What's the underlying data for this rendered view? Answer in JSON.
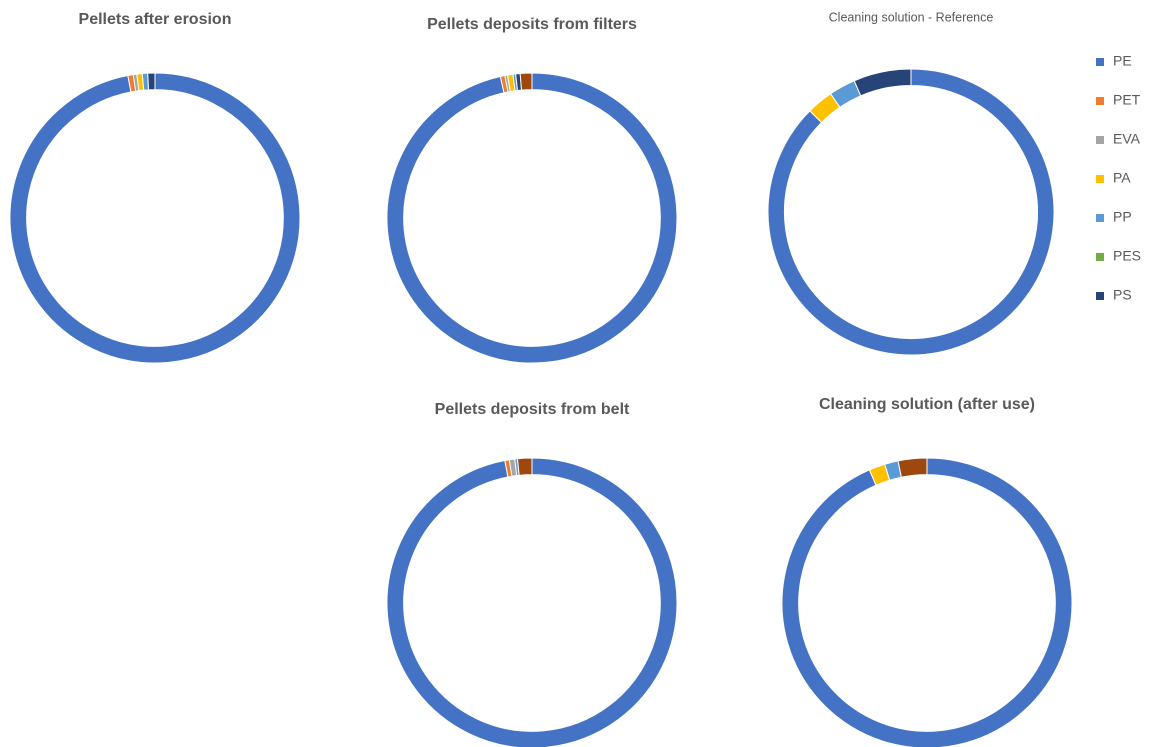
{
  "chart_data": [
    {
      "type": "donut",
      "title": "Pellets after erosion",
      "categories": [
        "PE",
        "PET",
        "EVA",
        "PA",
        "PP",
        "PES",
        "PS",
        null
      ],
      "values": [
        97,
        0.6,
        0.4,
        0.6,
        0.6,
        0,
        0.8,
        0
      ],
      "colors": [
        "#4472c4",
        "#ed7d31",
        "#a5a5a5",
        "#ffc000",
        "#5b9bd5",
        "#70ad47",
        "#264478",
        "#9e480e"
      ]
    },
    {
      "type": "donut",
      "title": "Pellets deposits from  filters",
      "categories": [
        "PE",
        "PET",
        "EVA",
        "PA",
        "PP",
        "PES",
        "PS",
        null
      ],
      "values": [
        96.5,
        0.5,
        0.3,
        0.6,
        0.3,
        0,
        0.5,
        1.3
      ],
      "colors": [
        "#4472c4",
        "#ed7d31",
        "#a5a5a5",
        "#ffc000",
        "#5b9bd5",
        "#70ad47",
        "#264478",
        "#9e480e"
      ]
    },
    {
      "type": "donut",
      "title": "Cleaning solution - Reference",
      "categories": [
        "PE",
        "PET",
        "EVA",
        "PA",
        "PP",
        "PES",
        "PS",
        null
      ],
      "values": [
        87.5,
        0,
        0,
        3,
        3,
        0,
        6.5,
        0
      ],
      "colors": [
        "#4472c4",
        "#ed7d31",
        "#a5a5a5",
        "#ffc000",
        "#5b9bd5",
        "#70ad47",
        "#264478",
        "#9e480e"
      ],
      "legend": "right"
    },
    {
      "type": "donut",
      "title": "Pellets deposits from belt",
      "categories": [
        "PE",
        "PET",
        "EVA",
        "PA",
        "PP",
        "PES",
        "PS",
        null
      ],
      "values": [
        97,
        0.5,
        0.6,
        0,
        0.3,
        0,
        0,
        1.6
      ],
      "colors": [
        "#4472c4",
        "#ed7d31",
        "#a5a5a5",
        "#ffc000",
        "#5b9bd5",
        "#70ad47",
        "#264478",
        "#9e480e"
      ]
    },
    {
      "type": "donut",
      "title": "Cleaning solution (after use)",
      "categories": [
        "PE",
        "PET",
        "EVA",
        "PA",
        "PP",
        "PES",
        "PS",
        null
      ],
      "values": [
        93.5,
        0,
        0,
        1.8,
        1.5,
        0,
        0,
        3.2
      ],
      "colors": [
        "#4472c4",
        "#ed7d31",
        "#a5a5a5",
        "#ffc000",
        "#5b9bd5",
        "#70ad47",
        "#264478",
        "#9e480e"
      ]
    }
  ]
}
